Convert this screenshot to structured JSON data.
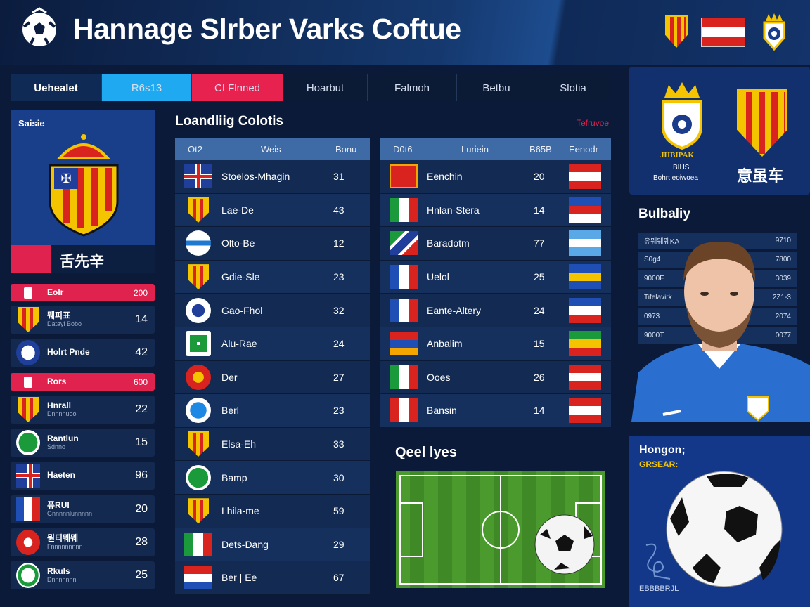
{
  "header": {
    "title": "Hannage Slrber Varks Coftue",
    "logo_icon": "globe-ball-icon",
    "right_icons": [
      "red-crest-icon",
      "netherlands-flag-icon",
      "crowned-ball-crest-icon"
    ]
  },
  "tabs": [
    {
      "label": "Uehealet",
      "bg": "#0e2a55"
    },
    {
      "label": "R6s13",
      "bg": "#1ea9f0"
    },
    {
      "label": "CI Flnned",
      "bg": "#e8224f"
    },
    {
      "label": "Hoarbut",
      "bg": "#0b1a35"
    },
    {
      "label": "Falmoh",
      "bg": "#0b1a35"
    },
    {
      "label": "Betbu",
      "bg": "#0b1a35"
    },
    {
      "label": "Slotia",
      "bg": "#0b1a35"
    }
  ],
  "featured": {
    "label": "Saisie",
    "caption": "舌先辛",
    "icon": "crowned-striped-crest-icon"
  },
  "left_list": [
    {
      "icon": "badge",
      "name": "Eolr",
      "sub": "",
      "value": "200",
      "highlight": true
    },
    {
      "icon": "crest",
      "name": "뭬피표",
      "sub": "Datayi Bobo",
      "value": "14"
    },
    {
      "icon": "ball",
      "name": "Holrt Pnde",
      "sub": "",
      "value": "42"
    },
    {
      "icon": "badge",
      "name": "Rors",
      "sub": "",
      "value": "600",
      "highlight": true
    },
    {
      "icon": "crest",
      "name": "Hnrall",
      "sub": "Dnnnnuoo",
      "value": "22"
    },
    {
      "icon": "green",
      "name": "Rantlun",
      "sub": "Sdnno",
      "value": "15"
    },
    {
      "icon": "uk",
      "name": "Haeten",
      "sub": "",
      "value": "96"
    },
    {
      "icon": "fr",
      "name": "퓨RUI",
      "sub": "Gnnnnnlunnnnn",
      "value": "20"
    },
    {
      "icon": "red",
      "name": "뭔티뭬뭬",
      "sub": "Fnnnnnnnnn",
      "value": "28"
    },
    {
      "icon": "greenS",
      "name": "Rkuls",
      "sub": "Dnnnnnnn",
      "value": "25"
    }
  ],
  "leaders": {
    "title": "Loandliig Colotis",
    "link": "Tefruvoe"
  },
  "table1": {
    "headers": [
      "Ot2",
      "Weis",
      "Bonu"
    ],
    "rows": [
      {
        "icon": "uk",
        "name": "Stoelos-Mhagin",
        "value": "31"
      },
      {
        "icon": "crest",
        "name": "Lae-De",
        "value": "43"
      },
      {
        "icon": "bluewhite",
        "name": "Olto-Be",
        "value": "12"
      },
      {
        "icon": "crest",
        "name": "Gdie-Sle",
        "value": "23"
      },
      {
        "icon": "star",
        "name": "Gao-Fhol",
        "value": "32"
      },
      {
        "icon": "greenbox",
        "name": "Alu-Rae",
        "value": "24"
      },
      {
        "icon": "redyellow",
        "name": "Der",
        "value": "27"
      },
      {
        "icon": "blueS",
        "name": "Berl",
        "value": "23"
      },
      {
        "icon": "crest",
        "name": "Elsa-Eh",
        "value": "33"
      },
      {
        "icon": "green",
        "name": "Bamp",
        "value": "30"
      },
      {
        "icon": "crest",
        "name": "Lhila-me",
        "value": "59"
      },
      {
        "icon": "it",
        "name": "Dets-Dang",
        "value": "29"
      },
      {
        "icon": "nl",
        "name": "Ber | Ee",
        "value": "67"
      }
    ]
  },
  "table2": {
    "headers": [
      "D0t6",
      "Luriein",
      "B65B",
      "Eenodr"
    ],
    "rows": [
      {
        "icon": "redsq",
        "name": "Eenchin",
        "value": "20",
        "flag": [
          "#d9231e",
          "#ffffff",
          "#d9231e"
        ]
      },
      {
        "icon": "it",
        "name": "Hnlan-Stera",
        "value": "14",
        "flag": [
          "#1f4fb5",
          "#d9231e",
          "#ffffff"
        ]
      },
      {
        "icon": "jm",
        "name": "Baradotm",
        "value": "77",
        "flag": [
          "#5aa8e6",
          "#ffffff",
          "#5aa8e6"
        ]
      },
      {
        "icon": "fr",
        "name": "Uelol",
        "value": "25",
        "flag": [
          "#1f4fb5",
          "#f5c400",
          "#1f4fb5"
        ]
      },
      {
        "icon": "fr",
        "name": "Eante-Altery",
        "value": "24",
        "flag": [
          "#1f4fb5",
          "#ffffff",
          "#d9231e"
        ]
      },
      {
        "icon": "am",
        "name": "Anbalim",
        "value": "15",
        "flag": [
          "#1a9a3a",
          "#f5c400",
          "#d9231e"
        ]
      },
      {
        "icon": "it",
        "name": "Ooes",
        "value": "26",
        "flag": [
          "#d9231e",
          "#ffffff",
          "#d9231e"
        ]
      },
      {
        "icon": "pe",
        "name": "Bansin",
        "value": "14",
        "flag": [
          "#d9231e",
          "#ffffff",
          "#d9231e"
        ]
      }
    ]
  },
  "pitch": {
    "title": "Qeel lyes"
  },
  "club_card": {
    "left_name": "JHBIPAK",
    "left_sub1": "BIHS",
    "left_sub2": "Bohrt eoiwoea",
    "right_name": "意虽车"
  },
  "stats": {
    "title": "Bulbaliy",
    "rows": [
      {
        "label": "유뭬뭬뭬KA",
        "value": "9710"
      },
      {
        "label": "S0g4",
        "value": "7800"
      },
      {
        "label": "9000F",
        "value": "3039"
      },
      {
        "label": "Tifelavirk",
        "value": "2Z1-3"
      },
      {
        "label": "0973",
        "value": "2074"
      },
      {
        "label": "9000T",
        "value": "0077"
      }
    ]
  },
  "promo": {
    "title": "Hongon;",
    "subtitle": "GRSEAR:",
    "footer": "EBBBBRJL"
  },
  "colors": {
    "accent_red": "#e0224e",
    "accent_cyan": "#1ea9f0",
    "panel_blue": "#1a3f8a",
    "dark_bg": "#0a1a38"
  }
}
